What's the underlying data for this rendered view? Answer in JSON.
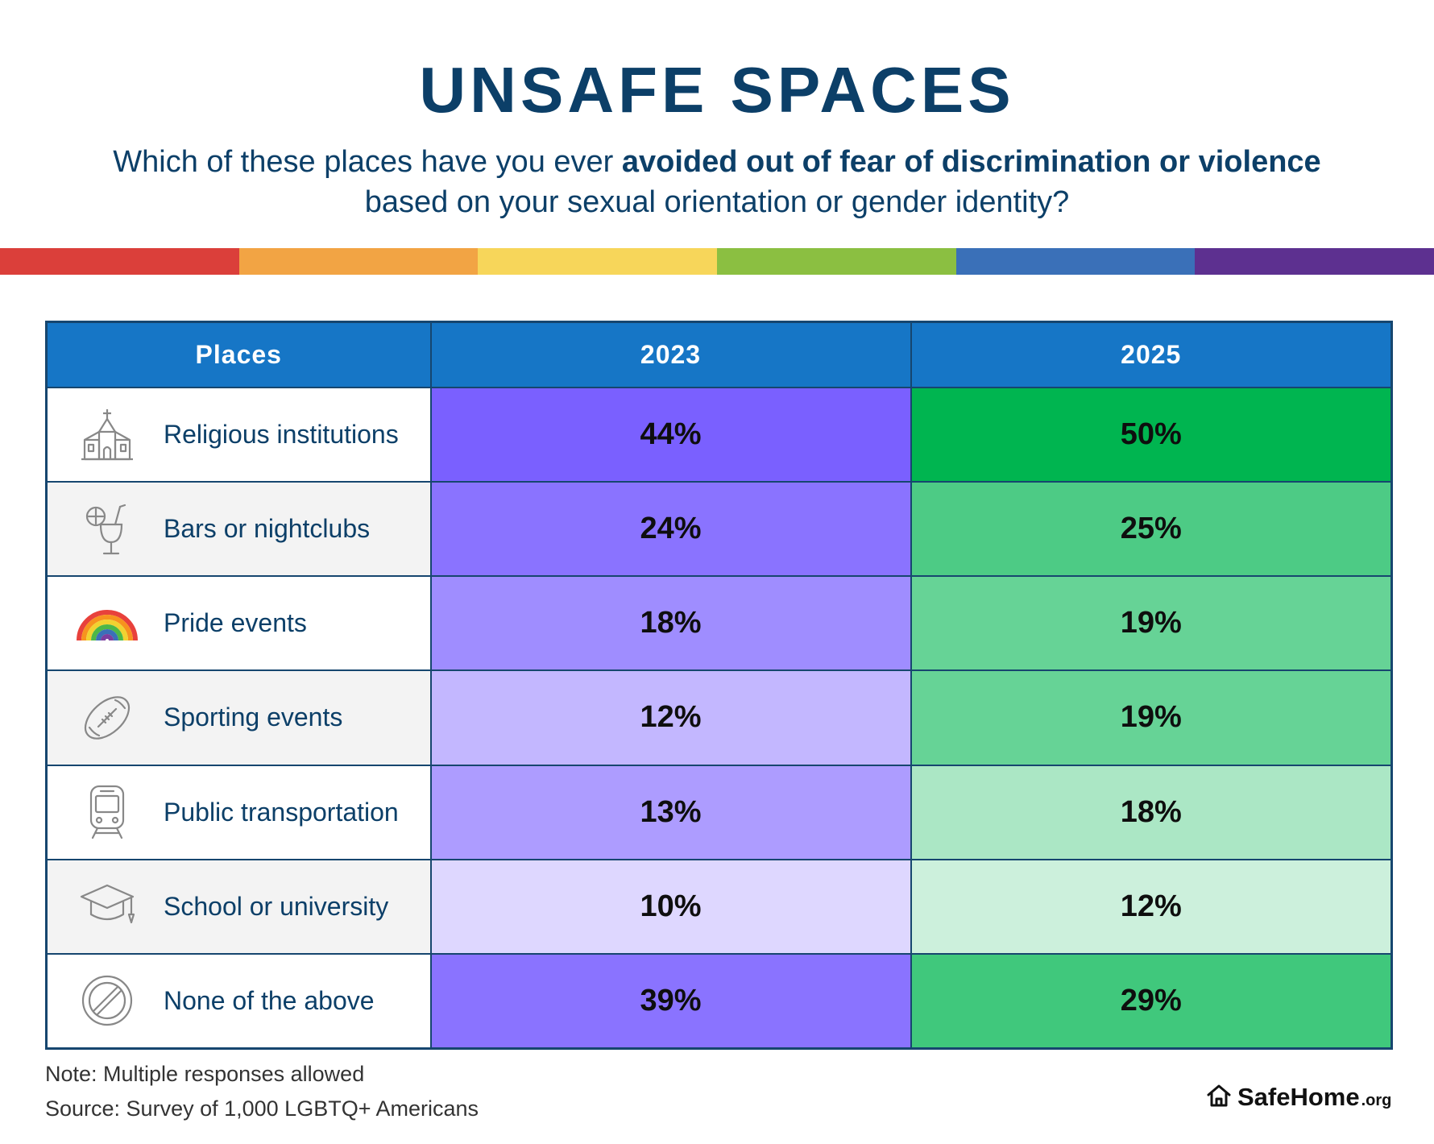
{
  "title": "UNSAFE SPACES",
  "subtitle": {
    "prefix": "Which of these places have you ever ",
    "emphasis": "avoided out of fear of discrimination or violence",
    "suffix": "based on your sexual orientation or gender identity?"
  },
  "rainbow_colors": [
    "#db3f3a",
    "#f2a444",
    "#f7d65a",
    "#8bbf41",
    "#3a70b8",
    "#5d3090"
  ],
  "colors": {
    "title": "#0c3f68",
    "header_bg": "#1676c6",
    "border": "#16466f",
    "purple_base": "#7a60ff",
    "green_base": "#00b550"
  },
  "chart_data": {
    "type": "table",
    "title": "UNSAFE SPACES",
    "columns": [
      "Places",
      "2023",
      "2025"
    ],
    "rows": [
      {
        "place": "Religious institutions",
        "icon": "church-icon",
        "v2023": "44%",
        "v2025": "50%",
        "shade2023": 1.0,
        "shade2025": 1.0
      },
      {
        "place": "Bars or nightclubs",
        "icon": "cocktail-icon",
        "v2023": "24%",
        "v2025": "25%",
        "shade2023": 0.88,
        "shade2025": 0.7
      },
      {
        "place": "Pride events",
        "icon": "rainbow-icon",
        "v2023": "18%",
        "v2025": "19%",
        "shade2023": 0.72,
        "shade2025": 0.6
      },
      {
        "place": "Sporting events",
        "icon": "football-icon",
        "v2023": "12%",
        "v2025": "19%",
        "shade2023": 0.45,
        "shade2025": 0.6
      },
      {
        "place": "Public transportation",
        "icon": "train-icon",
        "v2023": "13%",
        "v2025": "18%",
        "shade2023": 0.62,
        "shade2025": 0.33
      },
      {
        "place": "School or university",
        "icon": "graduation-cap-icon",
        "v2023": "10%",
        "v2025": "12%",
        "shade2023": 0.25,
        "shade2025": 0.2
      },
      {
        "place": "None of the above",
        "icon": "prohibited-icon",
        "v2023": "39%",
        "v2025": "29%",
        "shade2023": 0.88,
        "shade2025": 0.75
      }
    ]
  },
  "notes": {
    "note": "Note: Multiple responses allowed",
    "source": "Source: Survey of 1,000 LGBTQ+ Americans"
  },
  "brand": {
    "name": "SafeHome",
    "tld": ".org",
    "icon": "house-icon"
  }
}
